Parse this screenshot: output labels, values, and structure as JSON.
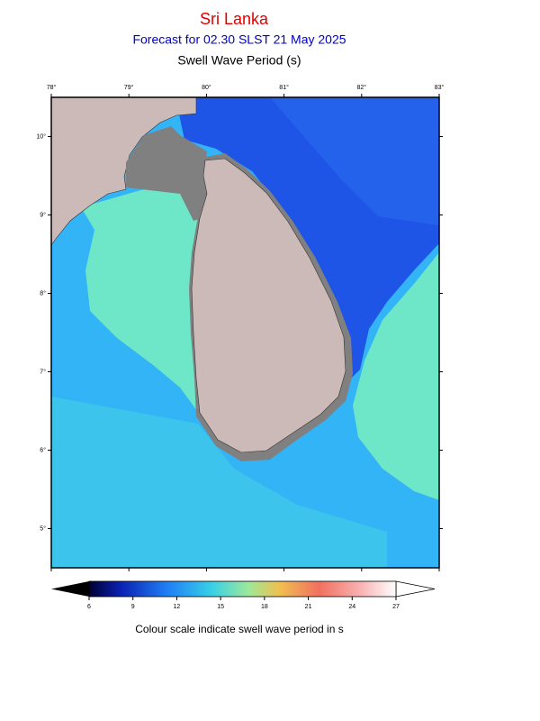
{
  "header": {
    "title": "Sri Lanka",
    "subtitle": "Forecast for  02.30 SLST 21 May 2025",
    "variable": "Swell Wave Period (s)"
  },
  "map": {
    "lon_range": [
      78,
      83
    ],
    "lat_range": [
      4.5,
      10.5
    ],
    "lon_ticks": [
      {
        "value": 78,
        "label": "78°"
      },
      {
        "value": 79,
        "label": "79°"
      },
      {
        "value": 80,
        "label": "80°"
      },
      {
        "value": 81,
        "label": "81°"
      },
      {
        "value": 82,
        "label": "82°"
      },
      {
        "value": 83,
        "label": "83°"
      }
    ],
    "lat_ticks": [
      {
        "value": 5,
        "label": "5°"
      },
      {
        "value": 6,
        "label": "6°"
      },
      {
        "value": 7,
        "label": "7°"
      },
      {
        "value": 8,
        "label": "8°"
      },
      {
        "value": 9,
        "label": "9°"
      },
      {
        "value": 10,
        "label": "10°"
      }
    ]
  },
  "colorbar": {
    "range": [
      6,
      27
    ],
    "ticks": [
      6,
      9,
      12,
      15,
      18,
      21,
      24,
      27
    ],
    "caption": "Colour scale indicate swell wave period in s"
  }
}
